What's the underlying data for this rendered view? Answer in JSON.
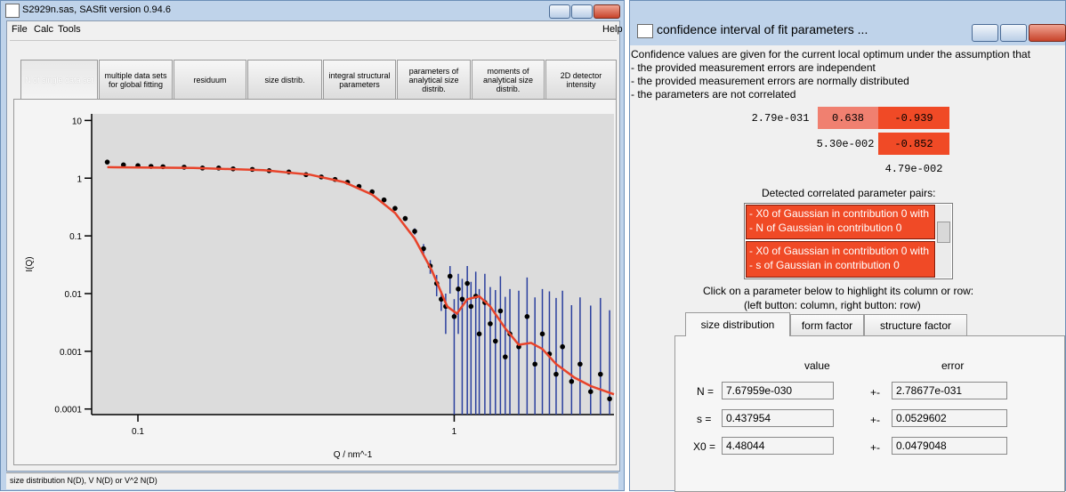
{
  "left_window": {
    "title": "S2929n.sas, SASfit version 0.94.6",
    "menu": [
      "File",
      "Calc",
      "Tools"
    ],
    "help": "Help",
    "tabs": [
      "N of single data set",
      "multiple data sets for global fitting",
      "residuum",
      "size distrib.",
      "integral structural parameters",
      "parameters of analytical size distrib.",
      "moments of analytical size distrib.",
      "2D detector intensity"
    ],
    "status": "size distribution N(D), V N(D) or V^2 N(D)"
  },
  "chart_data": {
    "type": "scatter",
    "x_label": "Q / nm^-1",
    "y_label": "I(Q)",
    "log_x": true,
    "log_y": true,
    "xlim": [
      0.0714,
      3.2
    ],
    "ylim": [
      8e-05,
      13
    ],
    "xticks": [
      0.1,
      1
    ],
    "yticks": [
      10,
      1,
      0.1,
      0.01,
      0.001,
      0.0001
    ],
    "color": "#000000",
    "error_color": "#2a3f9e",
    "x": [
      0.08,
      0.09,
      0.1,
      0.11,
      0.12,
      0.14,
      0.16,
      0.18,
      0.2,
      0.23,
      0.26,
      0.3,
      0.34,
      0.38,
      0.42,
      0.46,
      0.5,
      0.55,
      0.6,
      0.65,
      0.7,
      0.75,
      0.8,
      0.84,
      0.88,
      0.91,
      0.94,
      0.97,
      1.0,
      1.03,
      1.06,
      1.1,
      1.13,
      1.17,
      1.2,
      1.25,
      1.3,
      1.35,
      1.4,
      1.45,
      1.5,
      1.6,
      1.7,
      1.8,
      1.9,
      2.0,
      2.1,
      2.2,
      2.35,
      2.5,
      2.7,
      2.9,
      3.1
    ],
    "values": [
      1.9,
      1.7,
      1.65,
      1.6,
      1.58,
      1.55,
      1.5,
      1.5,
      1.45,
      1.42,
      1.35,
      1.28,
      1.15,
      1.05,
      0.95,
      0.85,
      0.72,
      0.58,
      0.42,
      0.3,
      0.2,
      0.12,
      0.06,
      0.03,
      0.015,
      0.008,
      0.006,
      0.02,
      0.004,
      0.012,
      0.008,
      0.015,
      0.006,
      0.009,
      0.002,
      0.007,
      0.003,
      0.0015,
      0.005,
      0.0008,
      0.002,
      0.0012,
      0.004,
      0.0006,
      0.002,
      0.0009,
      0.0004,
      0.0012,
      0.0003,
      0.0006,
      0.0002,
      0.0004,
      0.00015
    ],
    "errors": [
      0,
      0,
      0,
      0,
      0,
      0,
      0,
      0,
      0,
      0,
      0,
      0,
      0,
      0,
      0,
      0,
      0,
      0,
      0.02,
      0.02,
      0.02,
      0.015,
      0.012,
      0.008,
      0.006,
      0.003,
      0.004,
      0.01,
      0.004,
      0.01,
      0.01,
      0.015,
      0.01,
      0.015,
      0.01,
      0.015,
      0.01,
      0.01,
      0.015,
      0.008,
      0.01,
      0.01,
      0.015,
      0.008,
      0.01,
      0.01,
      0.008,
      0.01,
      0.006,
      0.008,
      0.006,
      0.008,
      0.005
    ],
    "fit": {
      "color": "#e8432a",
      "x": [
        0.08,
        0.15,
        0.25,
        0.35,
        0.45,
        0.55,
        0.65,
        0.75,
        0.85,
        0.95,
        1.02,
        1.1,
        1.2,
        1.3,
        1.45,
        1.6,
        1.75,
        1.9,
        2.1,
        2.4,
        2.7,
        3.2
      ],
      "values": [
        1.55,
        1.5,
        1.38,
        1.15,
        0.85,
        0.52,
        0.25,
        0.09,
        0.025,
        0.006,
        0.0045,
        0.008,
        0.009,
        0.006,
        0.0025,
        0.0013,
        0.0014,
        0.0011,
        0.0006,
        0.00035,
        0.00025,
        0.00018
      ]
    }
  },
  "right_window": {
    "title": "confidence interval of fit parameters ...",
    "intro": [
      "Confidence values are given for the current local optimum under the assumption that",
      "- the provided measurement errors are independent",
      "- the provided measurement errors are normally distributed",
      "- the parameters are not correlated"
    ],
    "matrix": [
      [
        "2.79e-031",
        "0.638",
        "-0.939"
      ],
      [
        "5.30e-002",
        "-0.852"
      ],
      [
        "4.79e-002"
      ]
    ],
    "correlated_title": "Detected correlated parameter pairs:",
    "pairs": [
      [
        "- X0 of Gaussian in contribution 0 with",
        "- N of Gaussian in contribution 0"
      ],
      [
        "- X0 of Gaussian in contribution 0 with",
        "- s of Gaussian in contribution 0"
      ]
    ],
    "instructions": [
      "Click on a parameter below to highlight its column or row:",
      "(left button: column, right button: row)"
    ],
    "tabs": [
      "size distribution",
      "form factor",
      "structure factor"
    ],
    "table": {
      "headers": [
        "value",
        "error"
      ],
      "rows": [
        {
          "label": "N =",
          "value": "7.67959e-030",
          "sep": "+-",
          "error": "2.78677e-031"
        },
        {
          "label": "s =",
          "value": "0.437954",
          "sep": "+-",
          "error": "0.0529602"
        },
        {
          "label": "X0 =",
          "value": "4.48044",
          "sep": "+-",
          "error": "0.0479048"
        }
      ]
    }
  }
}
